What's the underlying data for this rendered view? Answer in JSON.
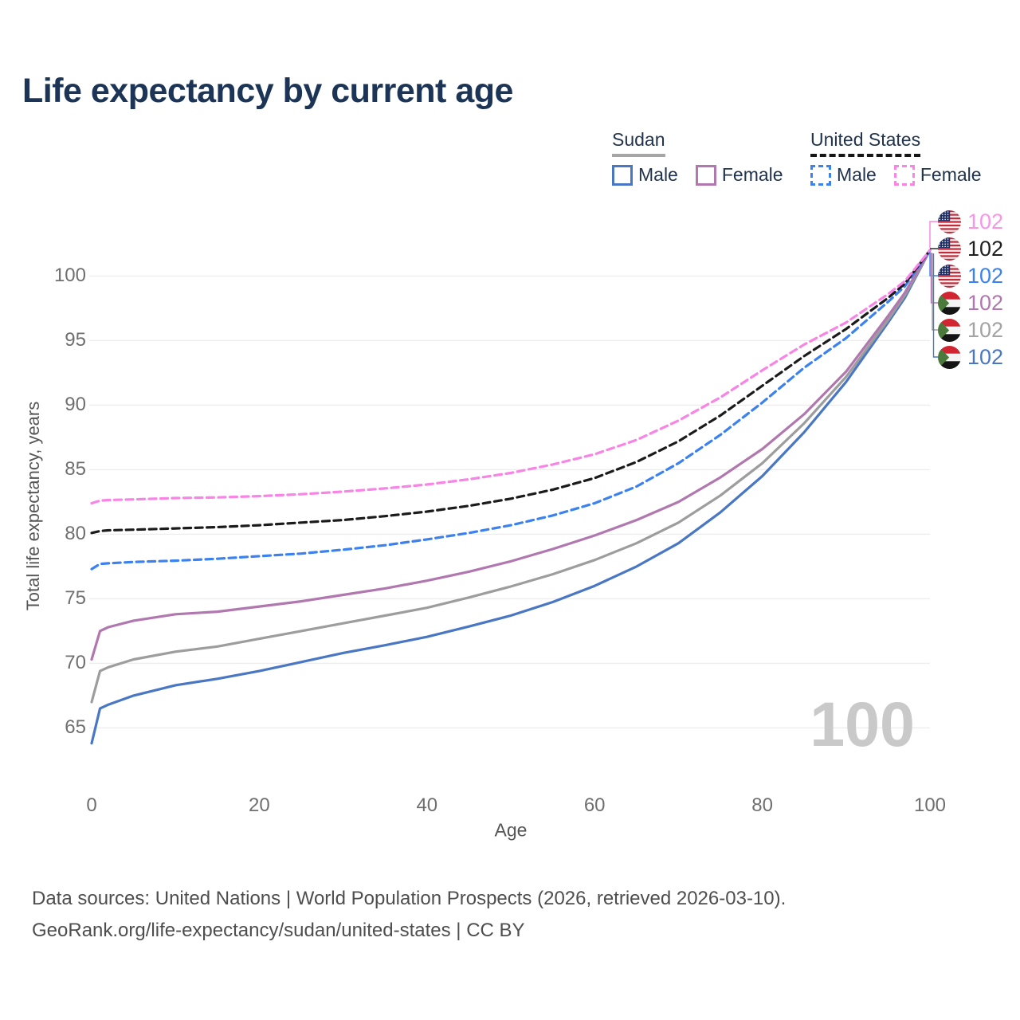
{
  "title": "Life expectancy by current age",
  "watermark": "100",
  "legend": {
    "groups": [
      {
        "name": "Sudan",
        "underline_style": "solid",
        "underline_color": "#a6a6a6",
        "items": [
          {
            "label": "Male",
            "color": "#4a77c4",
            "dashed": false
          },
          {
            "label": "Female",
            "color": "#b078ae",
            "dashed": false
          }
        ]
      },
      {
        "name": "United States",
        "underline_style": "dashed",
        "underline_color": "#161616",
        "items": [
          {
            "label": "Male",
            "color": "#3b82f0",
            "dashed": true
          },
          {
            "label": "Female",
            "color": "#f884e6",
            "dashed": true
          }
        ]
      }
    ]
  },
  "end_labels": [
    {
      "flag": "us",
      "flag_name": "united-states-flag",
      "value": "102",
      "color": "#f995e7"
    },
    {
      "flag": "us",
      "flag_name": "united-states-flag",
      "value": "102",
      "color": "#1f1f1f"
    },
    {
      "flag": "us",
      "flag_name": "united-states-flag",
      "value": "102",
      "color": "#3b82f0"
    },
    {
      "flag": "sudan",
      "flag_name": "sudan-flag",
      "value": "102",
      "color": "#b078ae"
    },
    {
      "flag": "sudan",
      "flag_name": "sudan-flag",
      "value": "102",
      "color": "#a3a3a3"
    },
    {
      "flag": "sudan",
      "flag_name": "sudan-flag",
      "value": "102",
      "color": "#4a77c4"
    }
  ],
  "chart_data": {
    "type": "line",
    "title": "Life expectancy by current age",
    "xlabel": "Age",
    "ylabel": "Total life expectancy, years",
    "x_ticks": [
      0,
      20,
      40,
      60,
      80,
      100
    ],
    "y_ticks": [
      65,
      70,
      75,
      80,
      85,
      90,
      95,
      100
    ],
    "xlim": [
      0,
      100
    ],
    "ylim": [
      63,
      103.5
    ],
    "grid": "horizontal",
    "legend_position": "top-right",
    "hover_age": 100,
    "hover_value_label": "102",
    "ages": [
      0,
      1,
      2,
      5,
      10,
      15,
      20,
      25,
      30,
      35,
      40,
      45,
      50,
      55,
      60,
      65,
      70,
      75,
      80,
      85,
      90,
      95,
      97,
      100
    ],
    "series": [
      {
        "name": "United States Female",
        "country": "United States",
        "sex": "Female",
        "style": "dashed",
        "color": "#f884e6",
        "values": [
          82.4,
          82.6,
          82.65,
          82.7,
          82.8,
          82.85,
          82.95,
          83.1,
          83.3,
          83.55,
          83.85,
          84.25,
          84.75,
          85.4,
          86.2,
          87.3,
          88.8,
          90.6,
          92.7,
          94.7,
          96.4,
          98.6,
          99.6,
          102
        ]
      },
      {
        "name": "United States Total",
        "country": "United States",
        "sex": "Both",
        "style": "dashed",
        "color": "#1b1b1b",
        "values": [
          80.1,
          80.25,
          80.3,
          80.35,
          80.45,
          80.55,
          80.7,
          80.9,
          81.1,
          81.4,
          81.75,
          82.2,
          82.75,
          83.45,
          84.35,
          85.6,
          87.2,
          89.2,
          91.5,
          93.8,
          95.9,
          98.3,
          99.4,
          102
        ]
      },
      {
        "name": "United States Male",
        "country": "United States",
        "sex": "Male",
        "style": "dashed",
        "color": "#3b82f0",
        "values": [
          77.3,
          77.7,
          77.75,
          77.85,
          77.95,
          78.1,
          78.3,
          78.5,
          78.8,
          79.15,
          79.6,
          80.1,
          80.7,
          81.45,
          82.4,
          83.7,
          85.5,
          87.7,
          90.2,
          92.9,
          95.2,
          98.0,
          99.2,
          102
        ]
      },
      {
        "name": "Sudan Female",
        "country": "Sudan",
        "sex": "Female",
        "style": "solid",
        "color": "#b078ae",
        "values": [
          70.3,
          72.5,
          72.8,
          73.3,
          73.8,
          74.0,
          74.4,
          74.8,
          75.3,
          75.8,
          76.4,
          77.1,
          77.9,
          78.85,
          79.9,
          81.1,
          82.5,
          84.4,
          86.6,
          89.3,
          92.6,
          96.9,
          98.7,
          102
        ]
      },
      {
        "name": "Sudan Total",
        "country": "Sudan",
        "sex": "Both",
        "style": "solid",
        "color": "#9d9d9d",
        "values": [
          67.0,
          69.4,
          69.7,
          70.3,
          70.9,
          71.3,
          71.9,
          72.5,
          73.1,
          73.7,
          74.3,
          75.1,
          75.95,
          76.9,
          78.0,
          79.3,
          80.9,
          83.0,
          85.5,
          88.6,
          92.2,
          96.6,
          98.5,
          102
        ]
      },
      {
        "name": "Sudan Male",
        "country": "Sudan",
        "sex": "Male",
        "style": "solid",
        "color": "#4a77c4",
        "values": [
          63.8,
          66.5,
          66.8,
          67.5,
          68.3,
          68.8,
          69.4,
          70.1,
          70.8,
          71.4,
          72.05,
          72.85,
          73.7,
          74.75,
          76.0,
          77.5,
          79.3,
          81.7,
          84.5,
          87.9,
          91.8,
          96.4,
          98.3,
          102
        ]
      }
    ]
  },
  "footer": {
    "line1": "Data sources: United Nations | World Population Prospects (2026, retrieved 2026-03-10).",
    "line2": "GeoRank.org/life-expectancy/sudan/united-states | CC BY"
  }
}
